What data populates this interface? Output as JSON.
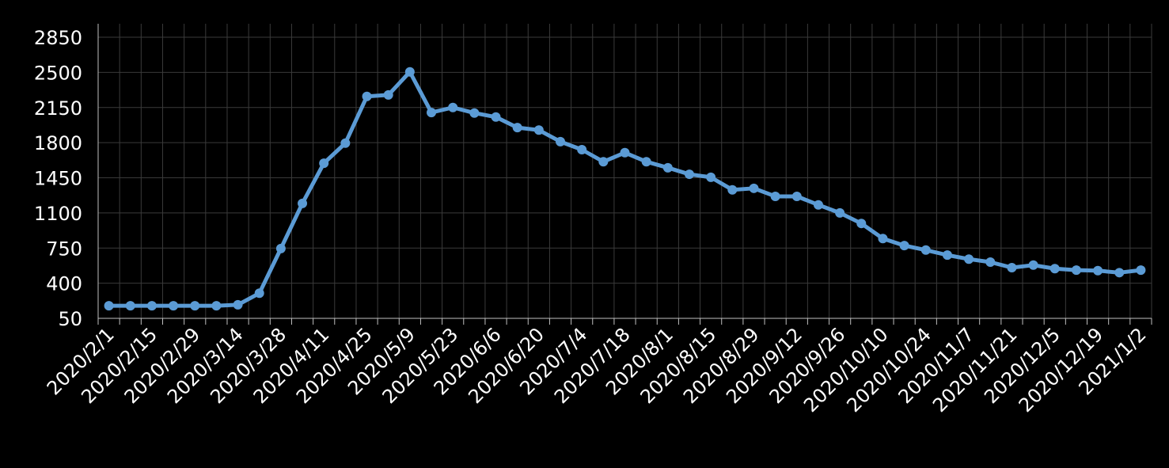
{
  "chart_data": {
    "type": "line",
    "categories": [
      "2020/2/1",
      null,
      "2020/2/15",
      null,
      "2020/2/29",
      null,
      "2020/3/14",
      null,
      "2020/3/28",
      null,
      "2020/4/11",
      null,
      "2020/4/25",
      null,
      "2020/5/9",
      null,
      "2020/5/23",
      null,
      "2020/6/6",
      null,
      "2020/6/20",
      null,
      "2020/7/4",
      null,
      "2020/7/18",
      null,
      "2020/8/1",
      null,
      "2020/8/15",
      null,
      "2020/8/29",
      null,
      "2020/9/12",
      null,
      "2020/9/26",
      null,
      "2020/10/10",
      null,
      "2020/10/24",
      null,
      "2020/11/7",
      null,
      "2020/11/21",
      null,
      "2020/12/5",
      null,
      "2020/12/19",
      null,
      "2021/1/2"
    ],
    "values": [
      175,
      175,
      175,
      175,
      175,
      175,
      185,
      300,
      745,
      1195,
      1595,
      1795,
      2260,
      2275,
      2505,
      2100,
      2150,
      2095,
      2055,
      1950,
      1925,
      1810,
      1730,
      1610,
      1700,
      1610,
      1550,
      1485,
      1455,
      1330,
      1345,
      1265,
      1265,
      1180,
      1100,
      995,
      845,
      775,
      730,
      680,
      640,
      610,
      555,
      580,
      545,
      530,
      525,
      505,
      530
    ],
    "color": "#5b9bd5",
    "ylim": [
      50,
      2850
    ],
    "yticks": [
      50,
      400,
      750,
      1100,
      1450,
      1800,
      2150,
      2500,
      2850
    ],
    "grid": true
  }
}
